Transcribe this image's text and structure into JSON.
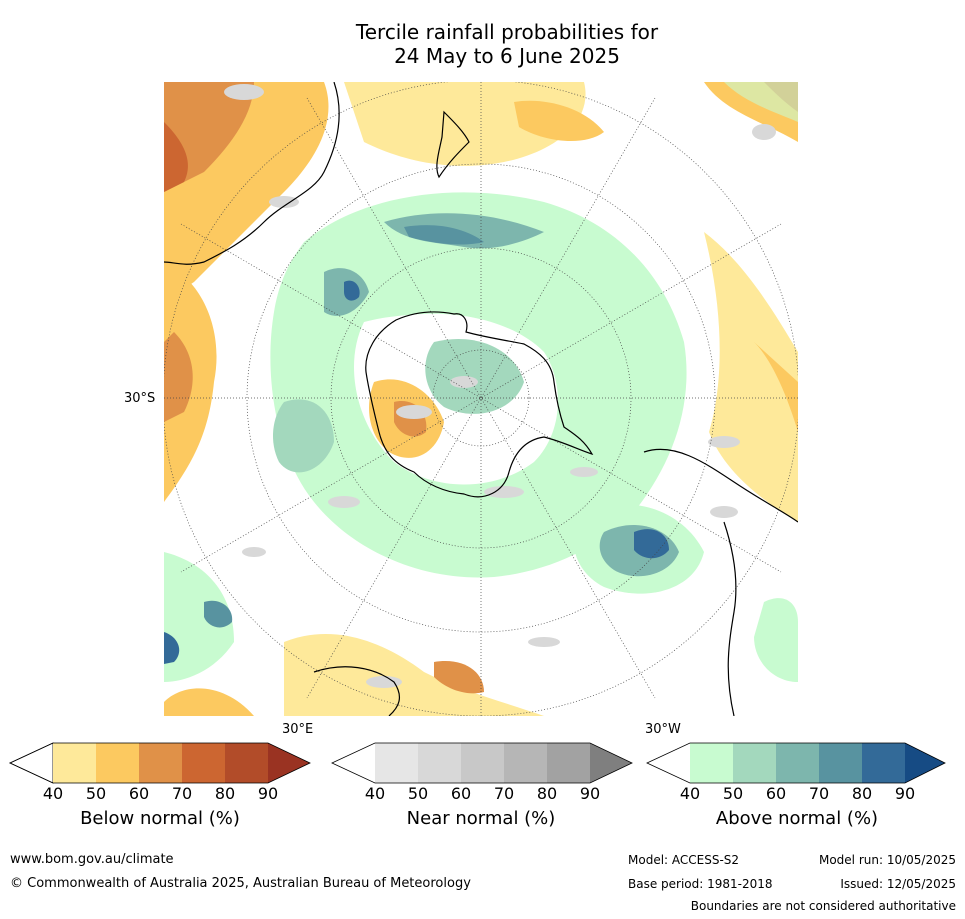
{
  "title": {
    "line1": "Tercile rainfall probabilities for",
    "line2": "24 May to 6 June 2025"
  },
  "map": {
    "projection": "south-polar stereographic",
    "lat_label": "30°S",
    "lon_label_east": "30°E",
    "lon_label_west": "30°W"
  },
  "colorbars": [
    {
      "title": "Below normal (%)",
      "ticks": [
        "40",
        "50",
        "60",
        "70",
        "80",
        "90"
      ],
      "colors": [
        "#ffffff",
        "#fee99a",
        "#fcc960",
        "#e09148",
        "#cc6631",
        "#b24c29",
        "#9a3322"
      ]
    },
    {
      "title": "Near normal (%)",
      "ticks": [
        "40",
        "50",
        "60",
        "70",
        "80",
        "90"
      ],
      "colors": [
        "#ffffff",
        "#e6e6e6",
        "#d8d8d8",
        "#c8c8c8",
        "#b6b6b6",
        "#a2a2a2",
        "#7f7f7f"
      ]
    },
    {
      "title": "Above normal (%)",
      "ticks": [
        "40",
        "50",
        "60",
        "70",
        "80",
        "90"
      ],
      "colors": [
        "#ffffff",
        "#c8fbd0",
        "#a3d8bd",
        "#7db6ad",
        "#5893a0",
        "#336a98",
        "#164b84"
      ]
    }
  ],
  "footer": {
    "url": "www.bom.gov.au/climate",
    "copyright": "© Commonwealth of Australia 2025, Australian Bureau of Meteorology",
    "model": "Model: ACCESS-S2",
    "model_run": "Model run: 10/05/2025",
    "base_period": "Base period: 1981-2018",
    "issued": "Issued: 12/05/2025",
    "disclaimer": "Boundaries are not considered authoritative"
  }
}
